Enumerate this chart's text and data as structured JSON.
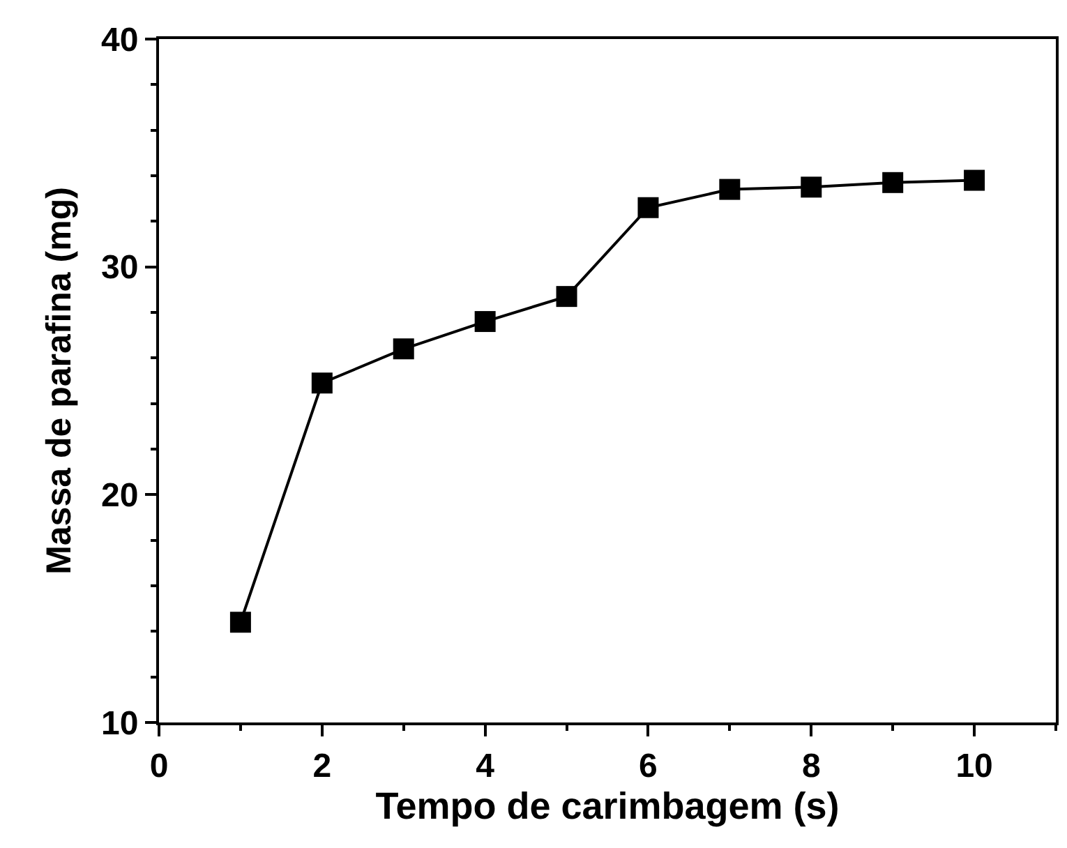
{
  "chart_data": {
    "type": "line",
    "xlabel": "Tempo de carimbagem (s)",
    "ylabel": "Massa de parafina (mg)",
    "x": [
      1,
      2,
      3,
      4,
      5,
      6,
      7,
      8,
      9,
      10
    ],
    "series": [
      {
        "color": "#000000",
        "values": [
          14.4,
          24.9,
          26.4,
          27.6,
          28.7,
          32.6,
          33.4,
          33.5,
          33.7,
          33.8
        ]
      }
    ],
    "xlim": [
      0,
      11
    ],
    "xticks": [
      0,
      2,
      4,
      6,
      8,
      10
    ],
    "ylim": [
      10,
      40
    ],
    "yticks": [
      10,
      20,
      30,
      40
    ],
    "marker": "square",
    "line_style": "solid"
  }
}
